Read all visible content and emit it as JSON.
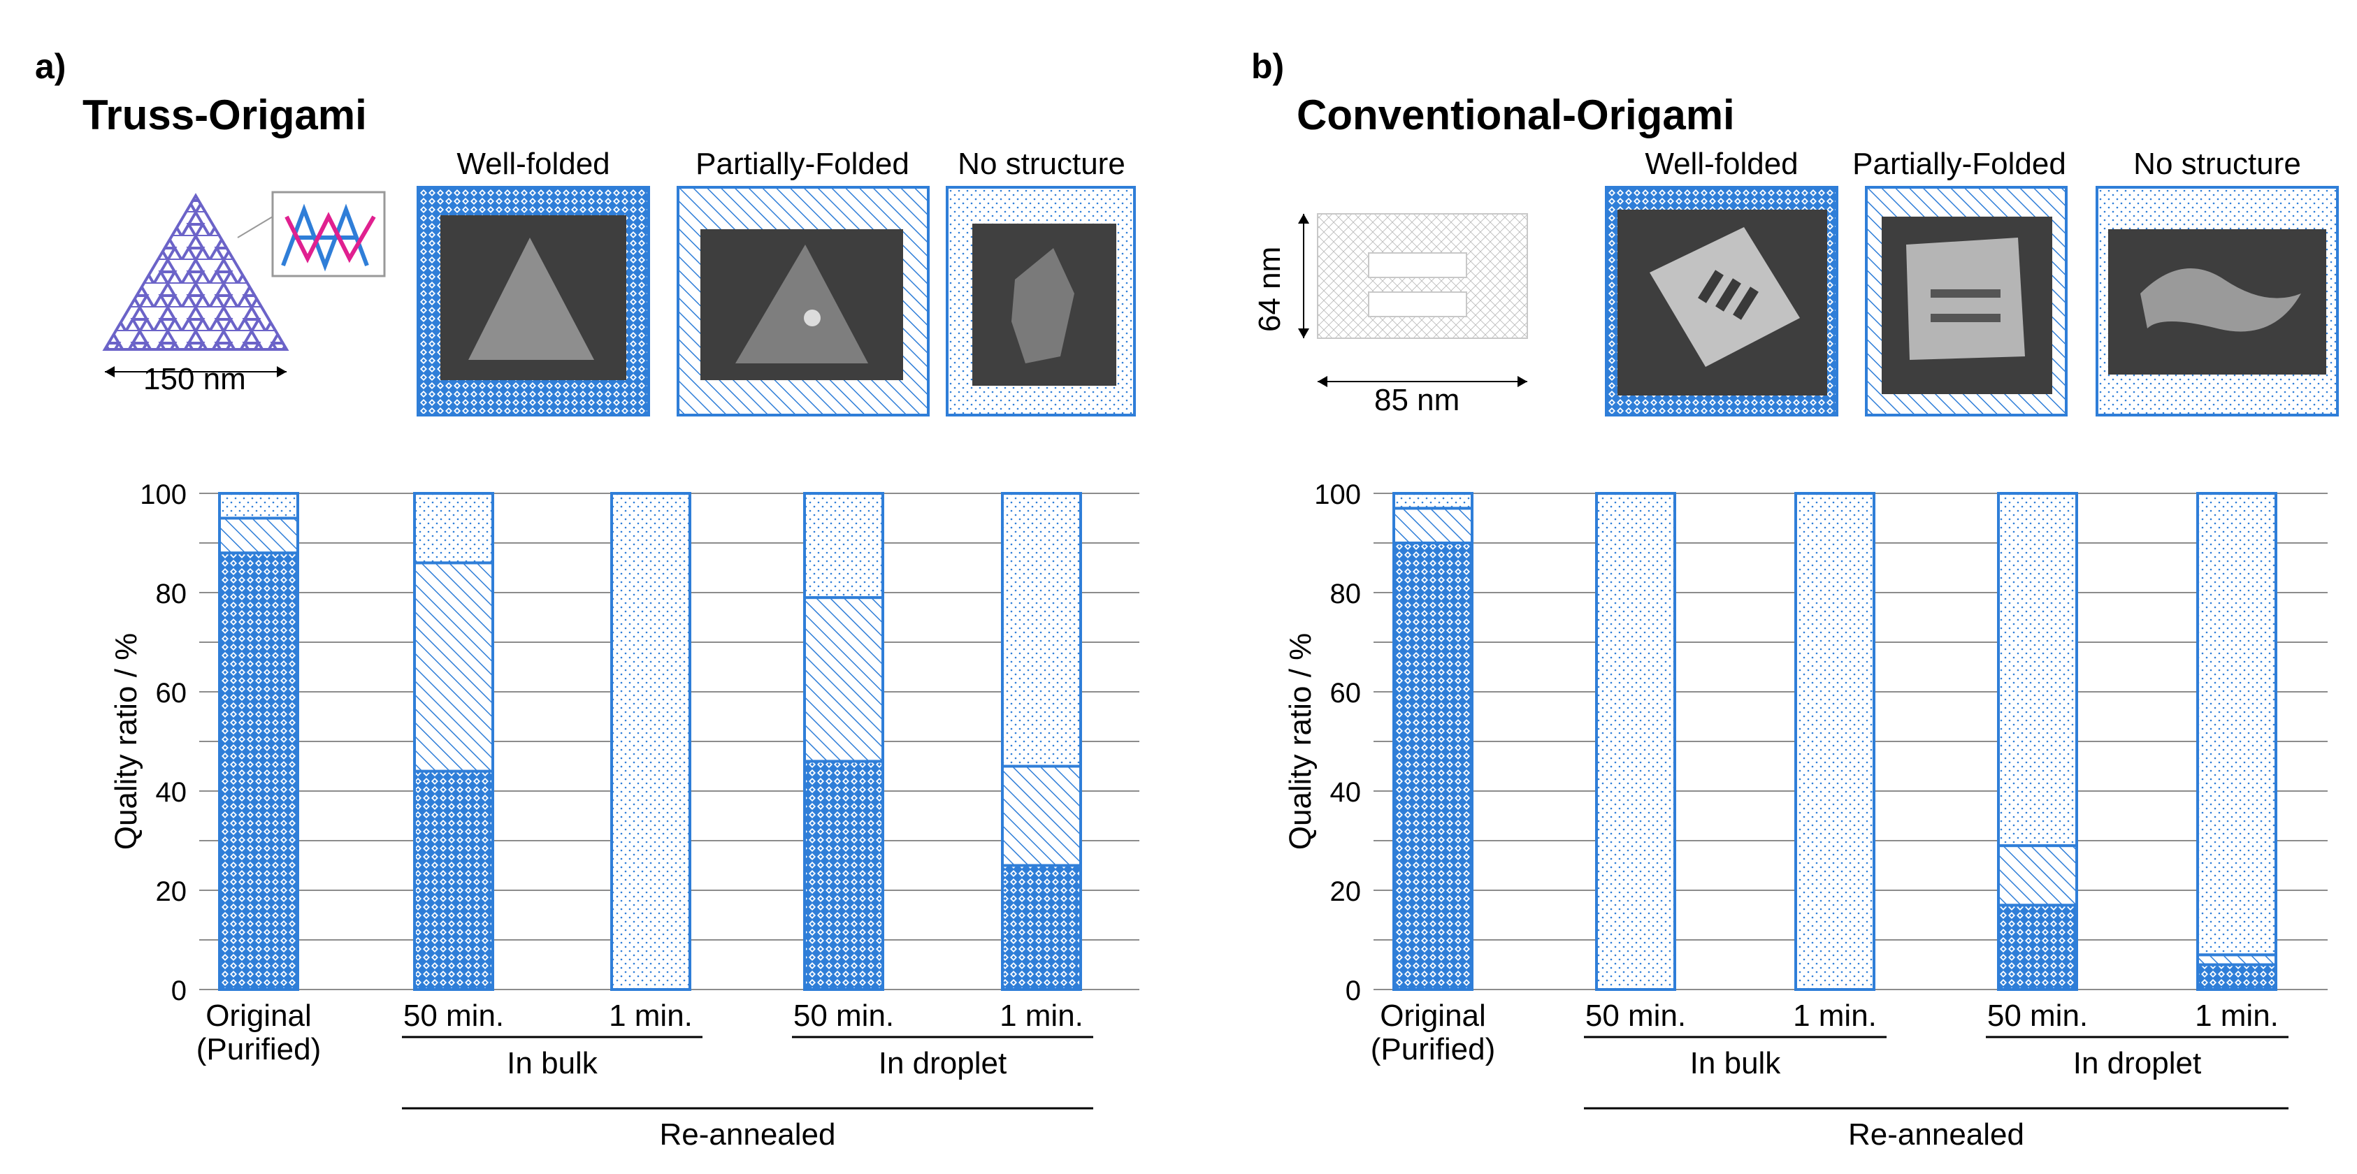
{
  "panels": [
    {
      "letter": "a)",
      "title": "Truss-Origami",
      "categories": {
        "well": "Well-folded",
        "partial": "Partially-Folded",
        "none": "No structure"
      },
      "dimension_labels": [
        "150 nm"
      ]
    },
    {
      "letter": "b)",
      "title": "Conventional-Origami",
      "categories": {
        "well": "Well-folded",
        "partial": "Partially-Folded",
        "none": "No structure"
      },
      "dimension_labels": [
        "64 nm",
        "85 nm"
      ]
    }
  ],
  "chart_data": [
    {
      "type": "bar",
      "stacked": true,
      "panel": "a",
      "ylabel": "Quality ratio / %",
      "ylim": [
        0,
        100
      ],
      "yticks": [
        0,
        20,
        40,
        60,
        80,
        100
      ],
      "grid": true,
      "categories": [
        "Original (Purified)",
        "50 min.",
        "1 min.",
        "50 min.",
        "1 min."
      ],
      "groups": [
        {
          "label": "In bulk",
          "members": [
            1,
            2
          ]
        },
        {
          "label": "In droplet",
          "members": [
            3,
            4
          ]
        },
        {
          "label": "Re-annealed",
          "members": [
            1,
            2,
            3,
            4
          ]
        }
      ],
      "series": [
        {
          "name": "Well-folded",
          "pattern": "diamond",
          "values": [
            88,
            44,
            0,
            46,
            25
          ]
        },
        {
          "name": "Partially-Folded",
          "pattern": "hatch",
          "values": [
            7,
            42,
            0,
            33,
            20
          ]
        },
        {
          "name": "No structure",
          "pattern": "dots",
          "values": [
            5,
            14,
            100,
            21,
            55
          ]
        }
      ],
      "color": "#2f7ed8"
    },
    {
      "type": "bar",
      "stacked": true,
      "panel": "b",
      "ylabel": "Quality ratio / %",
      "ylim": [
        0,
        100
      ],
      "yticks": [
        0,
        20,
        40,
        60,
        80,
        100
      ],
      "grid": true,
      "categories": [
        "Original (Purified)",
        "50 min.",
        "1 min.",
        "50 min.",
        "1 min."
      ],
      "groups": [
        {
          "label": "In bulk",
          "members": [
            1,
            2
          ]
        },
        {
          "label": "In droplet",
          "members": [
            3,
            4
          ]
        },
        {
          "label": "Re-annealed",
          "members": [
            1,
            2,
            3,
            4
          ]
        }
      ],
      "series": [
        {
          "name": "Well-folded",
          "pattern": "diamond",
          "values": [
            90,
            0,
            0,
            17,
            5
          ]
        },
        {
          "name": "Partially-Folded",
          "pattern": "hatch",
          "values": [
            7,
            0,
            0,
            12,
            2
          ]
        },
        {
          "name": "No structure",
          "pattern": "dots",
          "values": [
            3,
            100,
            100,
            71,
            93
          ]
        }
      ],
      "color": "#2f7ed8"
    }
  ]
}
